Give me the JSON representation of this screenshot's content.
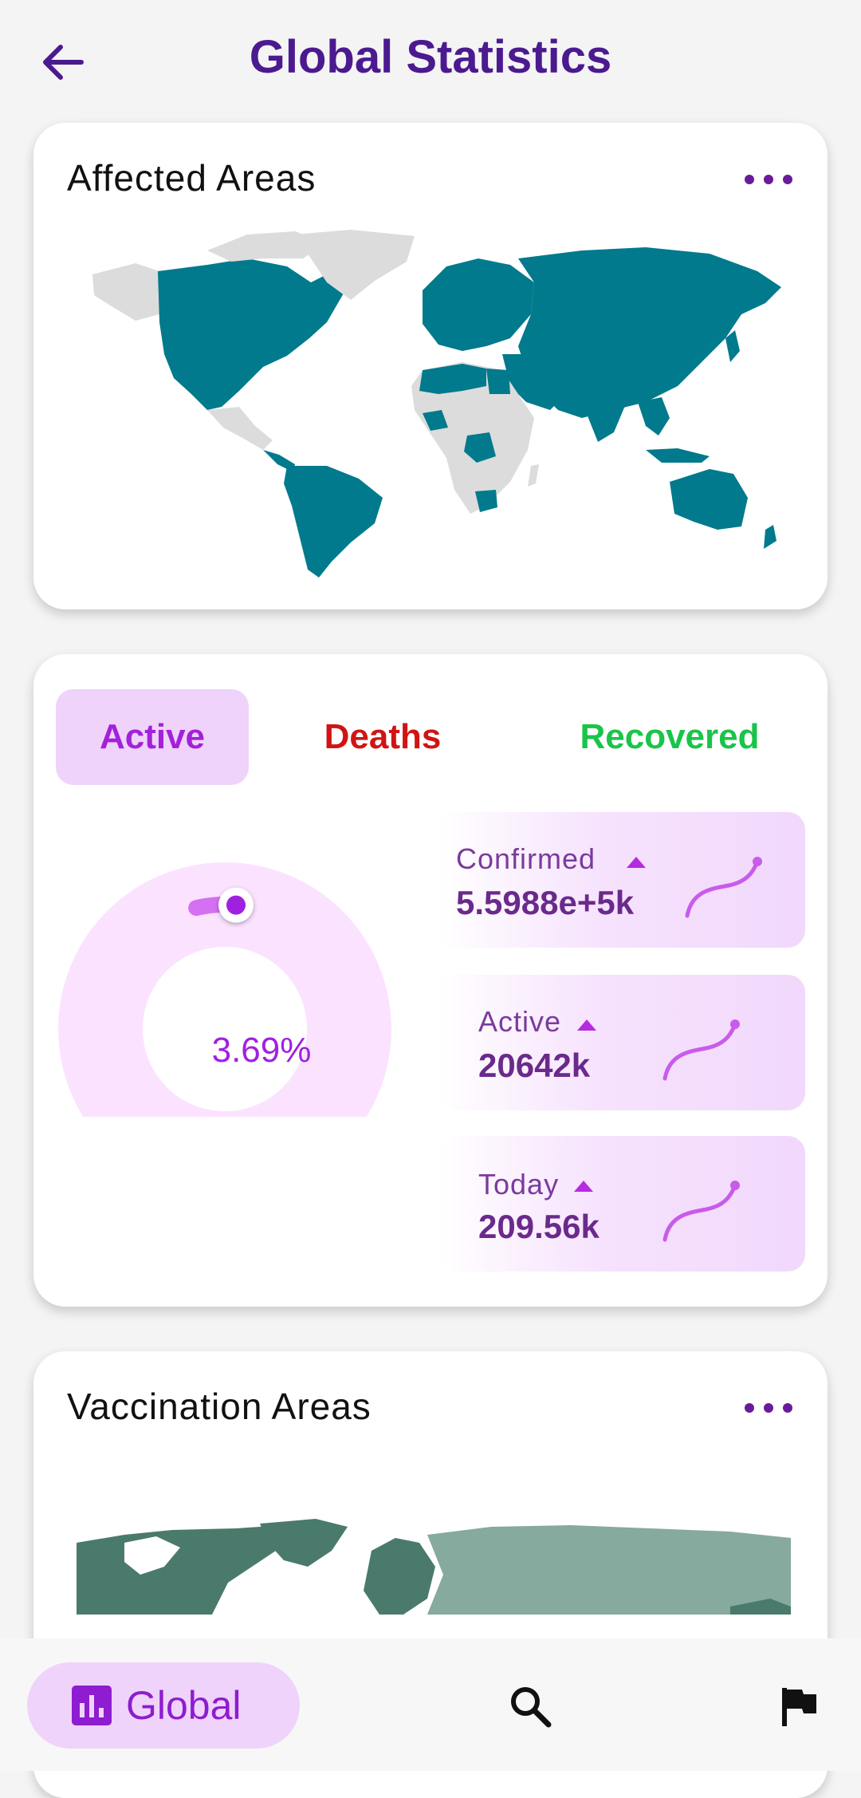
{
  "header": {
    "title": "Global Statistics"
  },
  "affected_card": {
    "title": "Affected Areas"
  },
  "stats_card": {
    "tabs": [
      "Active",
      "Deaths",
      "Recovered"
    ],
    "donut_percent": "3.69%",
    "donut_fraction": 0.0369,
    "stats": [
      {
        "label": "Confirmed",
        "value": "5.5988e+5k"
      },
      {
        "label": "Active",
        "value": "20642k"
      },
      {
        "label": "Today",
        "value": "209.56k"
      }
    ]
  },
  "vaccination_card": {
    "title": "Vaccination Areas"
  },
  "bottom_nav": {
    "global_label": "Global",
    "icons": [
      "chart-icon",
      "search-icon",
      "flag-icon"
    ]
  },
  "colors": {
    "title": "#4b1a8f",
    "map_affected": "#007a8c",
    "map_unaffected": "#dcdcdc",
    "vacc_dark": "#4a7a6c",
    "vacc_light": "#86aa9d",
    "accent": "#a321d8",
    "deaths": "#d01414",
    "recovered": "#19c44a"
  }
}
